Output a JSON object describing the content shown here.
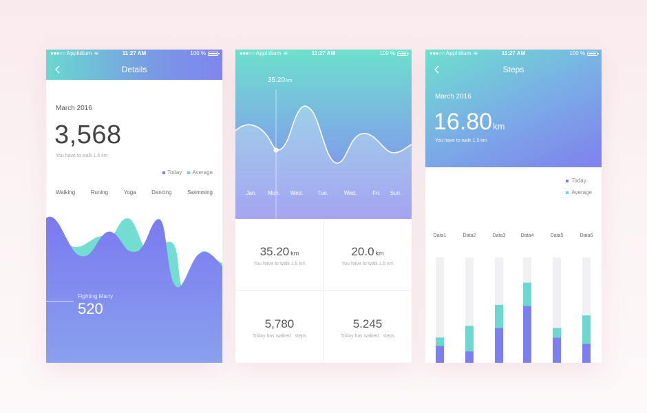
{
  "status": {
    "carrier": "Applidium",
    "time": "11:27 AM",
    "battery": "100 %"
  },
  "colors": {
    "today": "#7b7ff0",
    "average": "#6dd8cf",
    "track": "#f0f0f2"
  },
  "details": {
    "nav_title": "Details",
    "month": "March 2016",
    "big_number": "3,568",
    "subtitle": "You have to walk 1.5 km",
    "legend": {
      "today": "Today",
      "average": "Average"
    },
    "categories": [
      "Walking",
      "Runing",
      "Yoga",
      "Dancing",
      "Swimming"
    ],
    "person_label": "Fighting Marry",
    "person_value": "520"
  },
  "overview": {
    "highlight_value": "35.20",
    "highlight_unit": "km",
    "days": [
      "Jan.",
      "Mon.",
      "Wed.",
      "Tue.",
      "Wed.",
      "Fri.",
      "Sun."
    ],
    "cards": [
      {
        "value": "35.20",
        "unit": "km",
        "label": "You have to walk 1.5 km"
      },
      {
        "value": "20.0",
        "unit": "km",
        "label": "You have to walk 1.5 km"
      },
      {
        "value": "5,780",
        "unit": "",
        "label": "Today has walked   steps"
      },
      {
        "value": "5.245",
        "unit": "",
        "label": "Today has walked   steps"
      }
    ]
  },
  "steps": {
    "nav_title": "Steps",
    "month": "March 2016",
    "big_value": "16.80",
    "big_unit": "km",
    "subtitle": "You have to walk 1.5 km",
    "legend": {
      "today": "Today",
      "average": "Average"
    }
  },
  "chart_data": {
    "type": "bar",
    "stacked": true,
    "categories": [
      "Data1",
      "Data2",
      "Data3",
      "Data4",
      "Data5",
      "Data6"
    ],
    "series": [
      {
        "name": "Today",
        "values": [
          0.16,
          0.11,
          0.33,
          0.54,
          0.24,
          0.18
        ]
      },
      {
        "name": "Average",
        "values": [
          0.08,
          0.24,
          0.22,
          0.22,
          0.09,
          0.27
        ]
      }
    ],
    "ylim": [
      0,
      1
    ]
  }
}
